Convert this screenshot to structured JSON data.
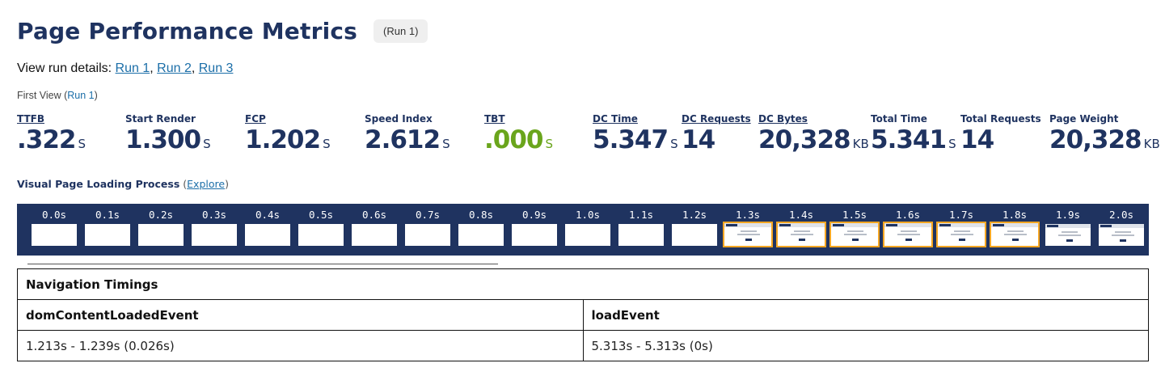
{
  "header": {
    "title": "Page Performance Metrics",
    "run_badge": "(Run 1)"
  },
  "run_links": {
    "prefix": "View run details: ",
    "runs": [
      "Run 1",
      "Run 2",
      "Run 3"
    ]
  },
  "first_view": {
    "label": "First View (",
    "run": "Run 1",
    "close": ")"
  },
  "metrics": [
    {
      "label": "TTFB",
      "value": ".322",
      "unit": "S"
    },
    {
      "label": "Start Render",
      "value": "1.300",
      "unit": "S"
    },
    {
      "label": "FCP",
      "value": "1.202",
      "unit": "S"
    },
    {
      "label": "Speed Index",
      "value": "2.612",
      "unit": "S"
    },
    {
      "label": "TBT",
      "value": ".000",
      "unit": "S"
    },
    {
      "label": "DC Time",
      "value": "5.347",
      "unit": "S"
    },
    {
      "label": "DC Requests",
      "value": "14",
      "unit": ""
    },
    {
      "label": "DC Bytes",
      "value": "20,328",
      "unit": "KB"
    },
    {
      "label": "Total Time",
      "value": "5.341",
      "unit": "S"
    },
    {
      "label": "Total Requests",
      "value": "14",
      "unit": ""
    },
    {
      "label": "Page Weight",
      "value": "20,328",
      "unit": "KB"
    }
  ],
  "visual_loading": {
    "title": "Visual Page Loading Process",
    "open": " (",
    "link": "Explore",
    "close": ")"
  },
  "filmstrip": {
    "frames": [
      {
        "time": "0.0s",
        "state": "blank"
      },
      {
        "time": "0.1s",
        "state": "blank"
      },
      {
        "time": "0.2s",
        "state": "blank"
      },
      {
        "time": "0.3s",
        "state": "blank"
      },
      {
        "time": "0.4s",
        "state": "blank"
      },
      {
        "time": "0.5s",
        "state": "blank"
      },
      {
        "time": "0.6s",
        "state": "blank"
      },
      {
        "time": "0.7s",
        "state": "blank"
      },
      {
        "time": "0.8s",
        "state": "blank"
      },
      {
        "time": "0.9s",
        "state": "blank"
      },
      {
        "time": "1.0s",
        "state": "blank"
      },
      {
        "time": "1.1s",
        "state": "blank"
      },
      {
        "time": "1.2s",
        "state": "blank"
      },
      {
        "time": "1.3s",
        "state": "changed"
      },
      {
        "time": "1.4s",
        "state": "changed"
      },
      {
        "time": "1.5s",
        "state": "changed"
      },
      {
        "time": "1.6s",
        "state": "changed"
      },
      {
        "time": "1.7s",
        "state": "changed"
      },
      {
        "time": "1.8s",
        "state": "changed"
      },
      {
        "time": "1.9s",
        "state": "rendered"
      },
      {
        "time": "2.0s",
        "state": "rendered"
      }
    ],
    "changed_color": "#f5a623",
    "background_color": "#1f3360"
  },
  "navigation_timings": {
    "title": "Navigation Timings",
    "columns": [
      "domContentLoadedEvent",
      "loadEvent"
    ],
    "values": [
      "1.213s - 1.239s (0.026s)",
      "5.313s - 5.313s (0s)"
    ]
  },
  "colors": {
    "brand_navy": "#1f3360",
    "good_green": "#6aa51c",
    "link_blue": "#1b6ea8"
  }
}
